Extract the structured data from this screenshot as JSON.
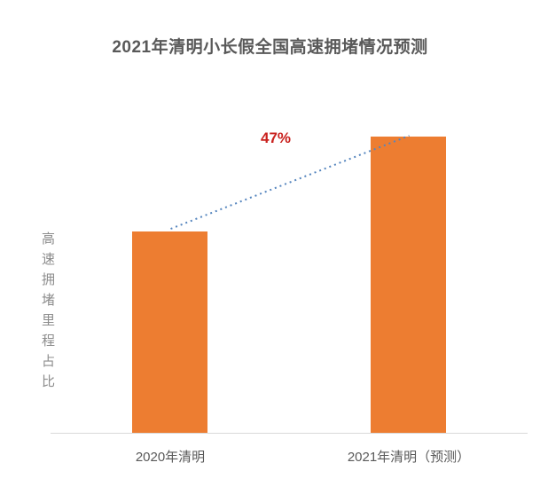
{
  "chart_data": {
    "type": "bar",
    "title": "2021年清明小长假全国高速拥堵情况预测",
    "ylabel": "高速拥堵里程占比",
    "xlabel": "",
    "categories": [
      "2020年清明",
      "2021年清明（预测）"
    ],
    "values": [
      1.0,
      1.47
    ],
    "values_note": "no numeric axis shown; values are relative bar heights, 2021 forecast is 47% above 2020",
    "annotations": [
      {
        "text": "47%",
        "color": "#C9211E"
      }
    ],
    "trendline": {
      "style": "dotted",
      "color": "#5585BE",
      "from": "2020年清明",
      "to": "2021年清明（预测）"
    },
    "bar_color": "#ED7D31",
    "axis_line_color": "#D9D9D9",
    "title_color": "#595959",
    "tick_label_color": "#595959",
    "ylabel_color": "#8C8C8C",
    "legend": "none",
    "gridlines": false
  }
}
